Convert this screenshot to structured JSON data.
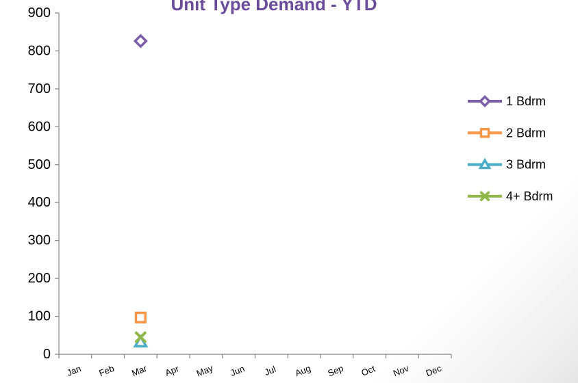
{
  "chart_data": {
    "type": "line",
    "title": "Unit Type Demand - YTD",
    "xlabel": "",
    "ylabel": "",
    "categories": [
      "Jan",
      "Feb",
      "Mar",
      "Apr",
      "May",
      "Jun",
      "Jul",
      "Aug",
      "Sep",
      "Oct",
      "Nov",
      "Dec"
    ],
    "ylim": [
      0,
      900
    ],
    "yticks": [
      0,
      100,
      200,
      300,
      400,
      500,
      600,
      700,
      800,
      900
    ],
    "legend_position": "right",
    "grid": false,
    "series": [
      {
        "name": "1 Bdrm",
        "marker": "diamond",
        "color": "#7b5ea7",
        "values": [
          null,
          null,
          826,
          null,
          null,
          null,
          null,
          null,
          null,
          null,
          null,
          null
        ]
      },
      {
        "name": "2 Bdrm",
        "marker": "square",
        "color": "#f79646",
        "values": [
          null,
          null,
          97,
          null,
          null,
          null,
          null,
          null,
          null,
          null,
          null,
          null
        ]
      },
      {
        "name": "3 Bdrm",
        "marker": "triangle",
        "color": "#4bacc6",
        "values": [
          null,
          null,
          32,
          null,
          null,
          null,
          null,
          null,
          null,
          null,
          null,
          null
        ]
      },
      {
        "name": "4+ Bdrm",
        "marker": "x",
        "color": "#8fb84b",
        "values": [
          null,
          null,
          45,
          null,
          null,
          null,
          null,
          null,
          null,
          null,
          null,
          null
        ]
      }
    ]
  }
}
